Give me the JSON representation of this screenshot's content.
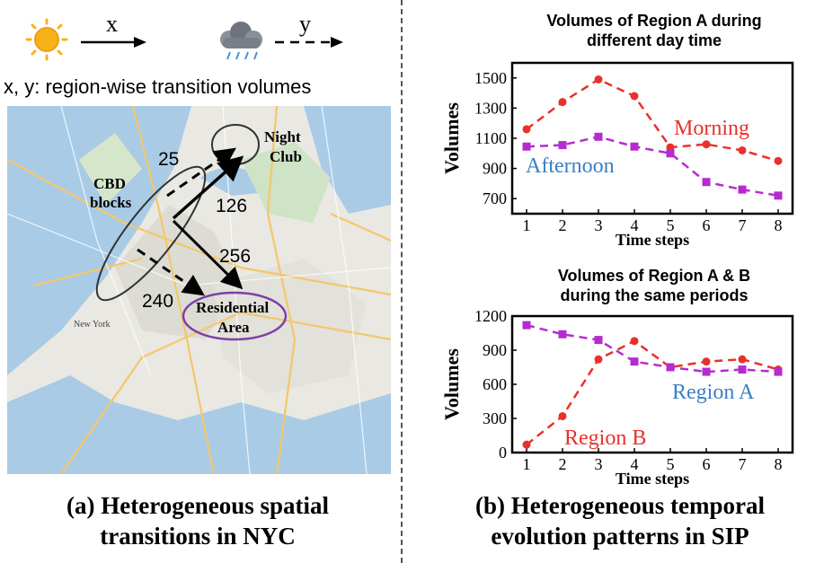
{
  "legend": {
    "x_label": "x",
    "y_label": "y",
    "sun_icon": "sun-icon",
    "cloud_icon": "storm-cloud-icon",
    "description": "x, y: region-wise transition volumes"
  },
  "map": {
    "cbd_label_line1": "CBD",
    "cbd_label_line2": "blocks",
    "night_label_line1": "Night",
    "night_label_line2": "Club",
    "res_label_line1": "Residential",
    "res_label_line2": "Area",
    "new_york_label": "New York",
    "volumes": {
      "to_club_dashed": "25",
      "to_club_solid": "126",
      "to_res_solid": "256",
      "to_res_dashed": "240"
    }
  },
  "captions": {
    "a_line1": "(a) Heterogeneous spatial",
    "a_line2": "transitions in NYC",
    "b_line1": "(b) Heterogeneous temporal",
    "b_line2": "evolution patterns in SIP"
  },
  "colors": {
    "red": "#e8312c",
    "purple": "#b62bd0",
    "blue": "#3b7fc4"
  },
  "chart_data": [
    {
      "type": "line",
      "title_line1": "Volumes of Region A during",
      "title_line2": "different day time",
      "xlabel": "Time steps",
      "ylabel": "Volumes",
      "x": [
        1,
        2,
        3,
        4,
        5,
        6,
        7,
        8
      ],
      "xlim": [
        0.6,
        8.4
      ],
      "ylim": [
        600,
        1600
      ],
      "yticks": [
        700,
        900,
        1100,
        1300,
        1500
      ],
      "series": [
        {
          "name": "Morning",
          "color": "#e8312c",
          "marker": "circle",
          "values": [
            1160,
            1340,
            1490,
            1380,
            1040,
            1060,
            1020,
            950
          ]
        },
        {
          "name": "Afternoon",
          "color": "#b62bd0",
          "marker": "square",
          "label_color": "#3b7fc4",
          "values": [
            1045,
            1055,
            1110,
            1045,
            1000,
            810,
            760,
            720
          ]
        }
      ]
    },
    {
      "type": "line",
      "title_line1": "Volumes of Region A & B",
      "title_line2": "during the same periods",
      "xlabel": "Time steps",
      "ylabel": "Volumes",
      "x": [
        1,
        2,
        3,
        4,
        5,
        6,
        7,
        8
      ],
      "xlim": [
        0.6,
        8.4
      ],
      "ylim": [
        0,
        1200
      ],
      "yticks": [
        0,
        300,
        600,
        900,
        1200
      ],
      "series": [
        {
          "name": "Region B",
          "color": "#e8312c",
          "marker": "circle",
          "values": [
            70,
            320,
            820,
            980,
            750,
            800,
            820,
            730
          ]
        },
        {
          "name": "Region A",
          "color": "#b62bd0",
          "marker": "square",
          "label_color": "#3b7fc4",
          "values": [
            1120,
            1040,
            990,
            800,
            750,
            710,
            730,
            710
          ]
        }
      ]
    }
  ]
}
